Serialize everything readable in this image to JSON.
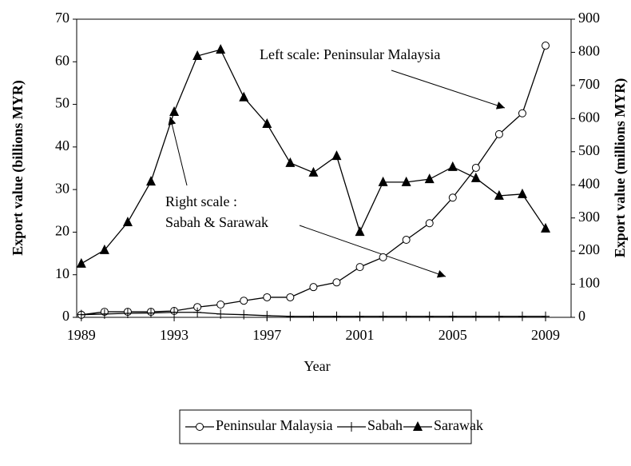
{
  "chart_data": {
    "type": "line",
    "x_label": "Year",
    "y_label": "Export value (billions MYR)",
    "y2_label": "Export value (millions MYR)",
    "annotations": [
      "Left scale: Peninsular Malaysia",
      "Right scale :",
      "Sabah & Sarawak"
    ],
    "x": [
      1989,
      1990,
      1991,
      1992,
      1993,
      1994,
      1995,
      1996,
      1997,
      1998,
      1999,
      2000,
      2001,
      2002,
      2003,
      2004,
      2005,
      2006,
      2007,
      2008,
      2009
    ],
    "xlim": [
      1988.8,
      2010.1
    ],
    "xticks": [
      1989,
      1993,
      1997,
      2001,
      2005,
      2009
    ],
    "ylim": [
      0,
      70
    ],
    "yticks": [
      0,
      10,
      20,
      30,
      40,
      50,
      60,
      70
    ],
    "y2lim": [
      0,
      900
    ],
    "y2ticks": [
      0,
      100,
      200,
      300,
      400,
      500,
      600,
      700,
      800,
      900
    ],
    "series": [
      {
        "name": "Peninsular Malaysia",
        "color": "#000000",
        "marker": "circle",
        "values": [
          0.6,
          1.3,
          1.3,
          1.3,
          1.5,
          2.4,
          3.0,
          3.9,
          4.7,
          4.7,
          7.1,
          8.2,
          11.8,
          14.1,
          18.2,
          22.1,
          28.1,
          35.1,
          43.0,
          47.9,
          63.8
        ]
      },
      {
        "name": "Sabah",
        "color": "#000000",
        "marker": "plus",
        "axis": "y2",
        "values": [
          8,
          10,
          12,
          13,
          15,
          15,
          10,
          8,
          5,
          3,
          3,
          3,
          3,
          3,
          3,
          3,
          3,
          3,
          3,
          3,
          3
        ]
      },
      {
        "name": "Sarawak",
        "color": "#000000",
        "marker": "triangle",
        "axis": "y2",
        "values": [
          162,
          203,
          287,
          410,
          620,
          789,
          808,
          664,
          584,
          466,
          437,
          487,
          258,
          408,
          408,
          417,
          454,
          420,
          367,
          372,
          268
        ]
      }
    ]
  }
}
